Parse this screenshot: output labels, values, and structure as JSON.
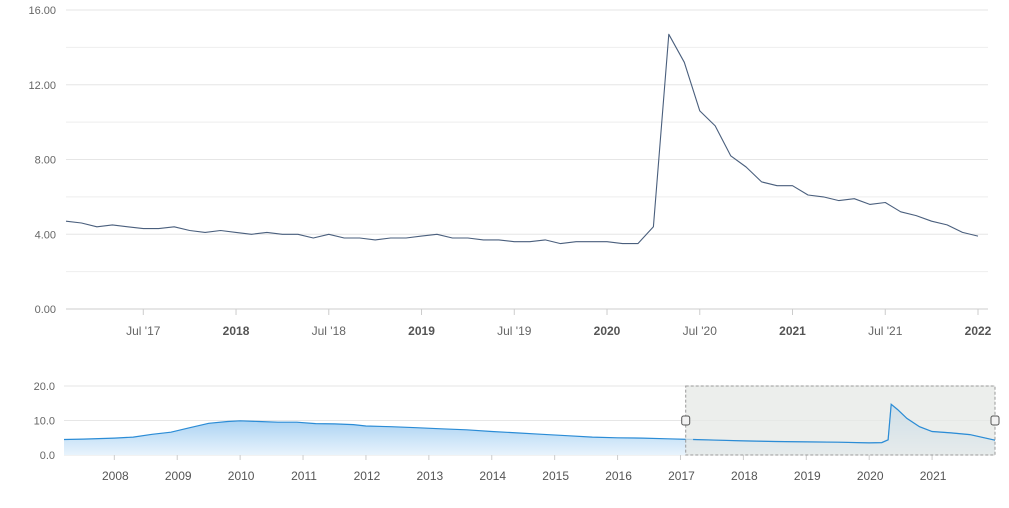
{
  "chart_data": [
    {
      "type": "line",
      "role": "main",
      "title": "",
      "xlabel": "",
      "ylabel": "",
      "ylim": [
        0,
        16
      ],
      "xlim": [
        "2017-02",
        "2022-01"
      ],
      "grid": true,
      "y_tick_labels": [
        "0.00",
        "4.00",
        "8.00",
        "12.00",
        "16.00"
      ],
      "x_ticks": [
        {
          "date": "2017-07",
          "label": "Jul '17",
          "major": false
        },
        {
          "date": "2018-01",
          "label": "2018",
          "major": true
        },
        {
          "date": "2018-07",
          "label": "Jul '18",
          "major": false
        },
        {
          "date": "2019-01",
          "label": "2019",
          "major": true
        },
        {
          "date": "2019-07",
          "label": "Jul '19",
          "major": false
        },
        {
          "date": "2020-01",
          "label": "2020",
          "major": true
        },
        {
          "date": "2020-07",
          "label": "Jul '20",
          "major": false
        },
        {
          "date": "2021-01",
          "label": "2021",
          "major": true
        },
        {
          "date": "2021-07",
          "label": "Jul '21",
          "major": false
        },
        {
          "date": "2022-01",
          "label": "2022",
          "major": true
        }
      ],
      "line_color": "#4a5f7d",
      "series": [
        {
          "x": [
            "2017-02",
            "2017-03",
            "2017-04",
            "2017-05",
            "2017-06",
            "2017-07",
            "2017-08",
            "2017-09",
            "2017-10",
            "2017-11",
            "2017-12",
            "2018-01",
            "2018-02",
            "2018-03",
            "2018-04",
            "2018-05",
            "2018-06",
            "2018-07",
            "2018-08",
            "2018-09",
            "2018-10",
            "2018-11",
            "2018-12",
            "2019-01",
            "2019-02",
            "2019-03",
            "2019-04",
            "2019-05",
            "2019-06",
            "2019-07",
            "2019-08",
            "2019-09",
            "2019-10",
            "2019-11",
            "2019-12",
            "2020-01",
            "2020-02",
            "2020-03",
            "2020-04",
            "2020-05",
            "2020-06",
            "2020-07",
            "2020-08",
            "2020-09",
            "2020-10",
            "2020-11",
            "2020-12",
            "2021-01",
            "2021-02",
            "2021-03",
            "2021-04",
            "2021-05",
            "2021-06",
            "2021-07",
            "2021-08",
            "2021-09",
            "2021-10",
            "2021-11",
            "2021-12",
            "2022-01"
          ],
          "values": [
            4.7,
            4.6,
            4.4,
            4.5,
            4.4,
            4.3,
            4.3,
            4.4,
            4.2,
            4.1,
            4.2,
            4.1,
            4.0,
            4.1,
            4.0,
            4.0,
            3.8,
            4.0,
            3.8,
            3.8,
            3.7,
            3.8,
            3.8,
            3.9,
            4.0,
            3.8,
            3.8,
            3.7,
            3.7,
            3.6,
            3.6,
            3.7,
            3.5,
            3.6,
            3.6,
            3.6,
            3.5,
            3.5,
            4.4,
            14.7,
            13.2,
            10.6,
            9.8,
            8.2,
            7.6,
            6.8,
            6.6,
            6.6,
            6.1,
            6.0,
            5.8,
            5.9,
            5.6,
            5.7,
            5.2,
            5.0,
            4.7,
            4.5,
            4.1,
            3.9
          ]
        }
      ]
    },
    {
      "type": "area",
      "role": "navigator",
      "ylim": [
        0,
        20
      ],
      "y_tick_labels": [
        "0.0",
        "10.0",
        "20.0"
      ],
      "x_tick_labels": [
        "2008",
        "2009",
        "2010",
        "2011",
        "2012",
        "2013",
        "2014",
        "2015",
        "2016",
        "2017",
        "2018",
        "2019",
        "2020",
        "2021"
      ],
      "x_range": [
        2007.2,
        2022.0
      ],
      "selected_range": [
        "2017-02",
        "2022-01"
      ],
      "line_color": "#2b8cd6",
      "fill_color_top": "#8fc4ef",
      "fill_color_bottom": "#e8f3fc",
      "selection_fill": "#e6e8e6",
      "series": [
        {
          "x": [
            2007.2,
            2007.5,
            2008.0,
            2008.3,
            2008.6,
            2008.9,
            2009.2,
            2009.5,
            2009.8,
            2010.0,
            2010.3,
            2010.6,
            2010.9,
            2011.2,
            2011.5,
            2011.8,
            2012.0,
            2012.4,
            2012.8,
            2013.2,
            2013.6,
            2014.0,
            2014.4,
            2014.8,
            2015.2,
            2015.6,
            2016.0,
            2016.4,
            2016.8,
            2017.2,
            2017.6,
            2018.0,
            2018.5,
            2019.0,
            2019.5,
            2020.0,
            2020.2,
            2020.3,
            2020.35,
            2020.45,
            2020.6,
            2020.8,
            2021.0,
            2021.3,
            2021.6,
            2022.0
          ],
          "values": [
            4.5,
            4.6,
            4.9,
            5.2,
            6.0,
            6.6,
            7.9,
            9.2,
            9.7,
            9.9,
            9.7,
            9.5,
            9.5,
            9.1,
            9.0,
            8.8,
            8.4,
            8.2,
            7.9,
            7.6,
            7.3,
            6.8,
            6.4,
            6.0,
            5.6,
            5.2,
            5.0,
            4.9,
            4.7,
            4.5,
            4.3,
            4.1,
            3.9,
            3.8,
            3.7,
            3.5,
            3.6,
            4.4,
            14.7,
            13.2,
            10.6,
            8.2,
            6.8,
            6.4,
            5.9,
            4.3
          ]
        }
      ]
    }
  ]
}
